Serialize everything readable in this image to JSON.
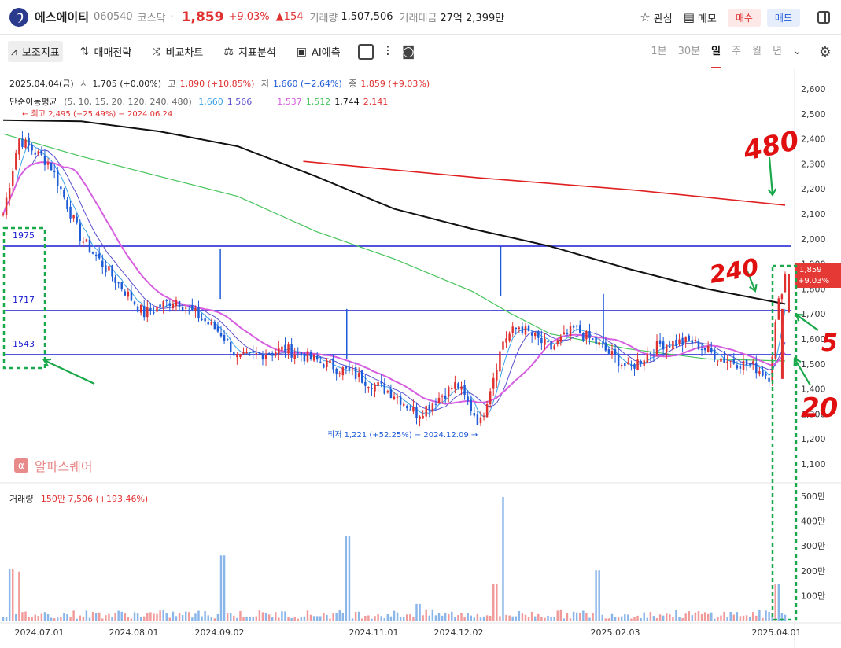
{
  "header": {
    "name": "에스에이티",
    "code": "060540",
    "market": "코스닥",
    "price": "1,859",
    "change_pct": "+9.03%",
    "change_abs": "▲154",
    "volume_label": "거래량",
    "volume": "1,507,506",
    "amount_label": "거래대금",
    "amount": "27억 2,399만",
    "watch_label": "관심",
    "memo_label": "메모",
    "buy_label": "매수",
    "sell_label": "매도"
  },
  "toolbar": {
    "items": [
      "보조지표",
      "매매전략",
      "비교차트",
      "지표분석",
      "AI예측"
    ],
    "periods": [
      "1분",
      "30분",
      "일",
      "주",
      "월",
      "년"
    ],
    "active_period": "일"
  },
  "info": {
    "date": "2025.04.04(금)",
    "open_label": "시",
    "open": "1,705 (+0.00%)",
    "high_label": "고",
    "high": "1,890 (+10.85%)",
    "low_label": "저",
    "low": "1,660 (−2.64%)",
    "close_label": "종",
    "close": "1,859 (+9.03%)",
    "ma_label": "단순이동평균",
    "ma_params": "(5, 10, 15, 20, 120, 240, 480)",
    "ma_values": [
      {
        "v": "1,660",
        "color": "#3aa0e8"
      },
      {
        "v": "1,566",
        "color": "#5a4fcf"
      },
      {
        "v": "",
        "color": "#dddddd"
      },
      {
        "v": "1,537",
        "color": "#d65fe0"
      },
      {
        "v": "1,512",
        "color": "#46c45a"
      },
      {
        "v": "1,744",
        "color": "#111111"
      },
      {
        "v": "2,141",
        "color": "#e03131"
      }
    ]
  },
  "volume_panel": {
    "label": "거래량",
    "value": "150만 7,506 (+193.46%)"
  },
  "brand": {
    "text": "알파스퀘어",
    "icon": "α"
  },
  "annotations": {
    "max_label": "← 최고 2,495 (−25.49%) − 2024.06.24",
    "min_label": "최저 1,221 (+52.25%) − 2024.12.09 →",
    "level_1975": "1975",
    "level_1717": "1717",
    "level_1543": "1543",
    "hw_480": "480",
    "hw_240": "240",
    "hw_5": "5",
    "hw_20": "20"
  },
  "chart_data": {
    "type": "candlestick",
    "y_ticks": [
      "2,600",
      "2,500",
      "2,400",
      "2,300",
      "2,200",
      "2,100",
      "2,000",
      "1,900",
      "1,800",
      "1,700",
      "1,600",
      "1,500",
      "1,400",
      "1,300",
      "1,200",
      "1,100"
    ],
    "ylim": [
      1050,
      2650
    ],
    "vol_ticks": [
      "500만",
      "400만",
      "300만",
      "200만",
      "100만"
    ],
    "vol_lim": [
      0,
      5200000
    ],
    "x_ticks": [
      "2024.07.01",
      "2024.08.01",
      "2024.09.02",
      "2024.11.01",
      "2024.12.02",
      "2025.02.03",
      "2025.04.01"
    ],
    "last_price_tag": {
      "price": "1,859",
      "pct": "+9.03%"
    },
    "horizontal_levels": [
      1975,
      1717,
      1543
    ],
    "ma480": [
      [
        0.38,
        2310
      ],
      [
        1.0,
        2135
      ]
    ],
    "ma240_points": [
      [
        0.0,
        2475
      ],
      [
        0.1,
        2470
      ],
      [
        0.2,
        2430
      ],
      [
        0.3,
        2370
      ],
      [
        0.4,
        2250
      ],
      [
        0.5,
        2120
      ],
      [
        0.6,
        2040
      ],
      [
        0.7,
        1970
      ],
      [
        0.8,
        1880
      ],
      [
        0.9,
        1800
      ],
      [
        1.0,
        1740
      ]
    ],
    "ma120_points": [
      [
        0.0,
        2420
      ],
      [
        0.1,
        2330
      ],
      [
        0.2,
        2250
      ],
      [
        0.3,
        2170
      ],
      [
        0.4,
        2030
      ],
      [
        0.5,
        1920
      ],
      [
        0.6,
        1790
      ],
      [
        0.65,
        1700
      ],
      [
        0.7,
        1620
      ],
      [
        0.8,
        1560
      ],
      [
        0.9,
        1520
      ],
      [
        1.0,
        1512
      ]
    ],
    "price_path": [
      [
        0.0,
        2100
      ],
      [
        0.02,
        2400
      ],
      [
        0.06,
        2300
      ],
      [
        0.1,
        2000
      ],
      [
        0.14,
        1850
      ],
      [
        0.18,
        1700
      ],
      [
        0.22,
        1760
      ],
      [
        0.28,
        1620
      ],
      [
        0.3,
        1520
      ],
      [
        0.36,
        1560
      ],
      [
        0.44,
        1470
      ],
      [
        0.5,
        1380
      ],
      [
        0.53,
        1300
      ],
      [
        0.58,
        1420
      ],
      [
        0.61,
        1260
      ],
      [
        0.64,
        1600
      ],
      [
        0.66,
        1650
      ],
      [
        0.7,
        1560
      ],
      [
        0.73,
        1640
      ],
      [
        0.76,
        1580
      ],
      [
        0.8,
        1480
      ],
      [
        0.84,
        1580
      ],
      [
        0.88,
        1590
      ],
      [
        0.92,
        1520
      ],
      [
        0.96,
        1490
      ],
      [
        0.98,
        1450
      ],
      [
        0.99,
        1720
      ],
      [
        1.0,
        1859
      ]
    ],
    "price_points": 245,
    "volume_spikes": [
      [
        0.01,
        2100000
      ],
      [
        0.02,
        2000000
      ],
      [
        0.28,
        2650000
      ],
      [
        0.44,
        3450000
      ],
      [
        0.53,
        700000
      ],
      [
        0.63,
        1500000
      ],
      [
        0.64,
        5000000
      ],
      [
        0.76,
        2050000
      ],
      [
        0.99,
        1500000
      ]
    ],
    "volume_base": 350000,
    "title": "",
    "xlabel": "",
    "ylabel": ""
  }
}
